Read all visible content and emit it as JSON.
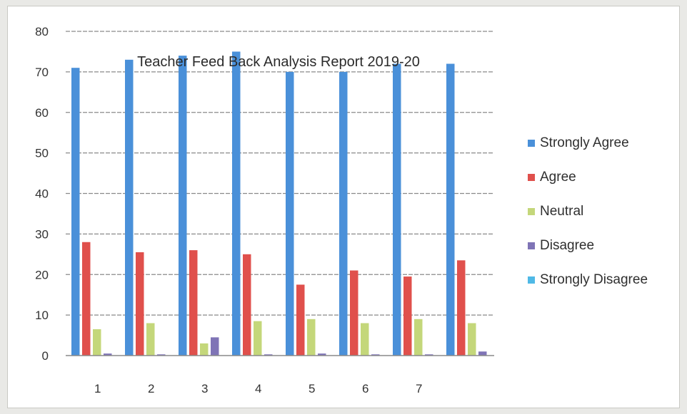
{
  "chart_data": {
    "type": "bar",
    "title": "Teacher Feed Back Analysis Report 2019-20",
    "xlabel": "",
    "ylabel": "",
    "categories": [
      "1",
      "2",
      "3",
      "4",
      "5",
      "6",
      "7",
      ""
    ],
    "ylim": [
      0,
      80
    ],
    "yticks": [
      "0",
      "10",
      "20",
      "30",
      "40",
      "50",
      "60",
      "70",
      "80"
    ],
    "grid": true,
    "legend_position": "right",
    "series": [
      {
        "name": "Strongly Agree",
        "color": "#4a90d9",
        "values": [
          71,
          73,
          74,
          75,
          70,
          70,
          72,
          72
        ]
      },
      {
        "name": "Agree",
        "color": "#e0504c",
        "values": [
          28,
          25.5,
          26,
          25,
          17.5,
          21,
          19.5,
          23.5
        ]
      },
      {
        "name": "Neutral",
        "color": "#c4d77a",
        "values": [
          6.5,
          8,
          3,
          8.5,
          9,
          8,
          9,
          8
        ]
      },
      {
        "name": "Disagree",
        "color": "#7f74b6",
        "values": [
          0.5,
          0.3,
          4.5,
          0.3,
          0.5,
          0.3,
          0.3,
          1
        ]
      },
      {
        "name": "Strongly Disagree",
        "color": "#4fb9e6",
        "values": [
          0,
          0,
          0,
          0,
          0,
          0,
          0,
          0
        ]
      }
    ]
  }
}
